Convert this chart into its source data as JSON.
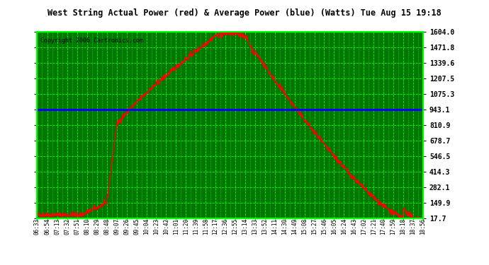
{
  "title": "West String Actual Power (red) & Average Power (blue) (Watts) Tue Aug 15 19:18",
  "copyright": "Copyright 2006 Cartronics.com",
  "yticks": [
    17.7,
    149.9,
    282.1,
    414.3,
    546.5,
    678.7,
    810.9,
    943.1,
    1075.3,
    1207.5,
    1339.6,
    1471.8,
    1604.0
  ],
  "avg_power": 943.1,
  "plot_bg": "#007700",
  "grid_color": "#00ff00",
  "line_color_red": "#ff0000",
  "line_color_blue": "#0000ff",
  "border_color": "#00ff00",
  "xtick_labels": [
    "06:33",
    "06:54",
    "07:13",
    "07:32",
    "07:51",
    "08:10",
    "08:29",
    "08:48",
    "09:07",
    "09:26",
    "09:45",
    "10:04",
    "10:23",
    "10:42",
    "11:01",
    "11:20",
    "11:39",
    "11:58",
    "12:17",
    "12:36",
    "12:55",
    "13:14",
    "13:33",
    "13:52",
    "14:11",
    "14:30",
    "14:49",
    "15:08",
    "15:27",
    "15:46",
    "16:05",
    "16:24",
    "16:43",
    "17:02",
    "17:21",
    "17:40",
    "17:59",
    "18:18",
    "18:37",
    "18:56"
  ],
  "ymin": 17.7,
  "ymax": 1604.0,
  "figwidth": 6.9,
  "figheight": 3.75,
  "dpi": 100
}
